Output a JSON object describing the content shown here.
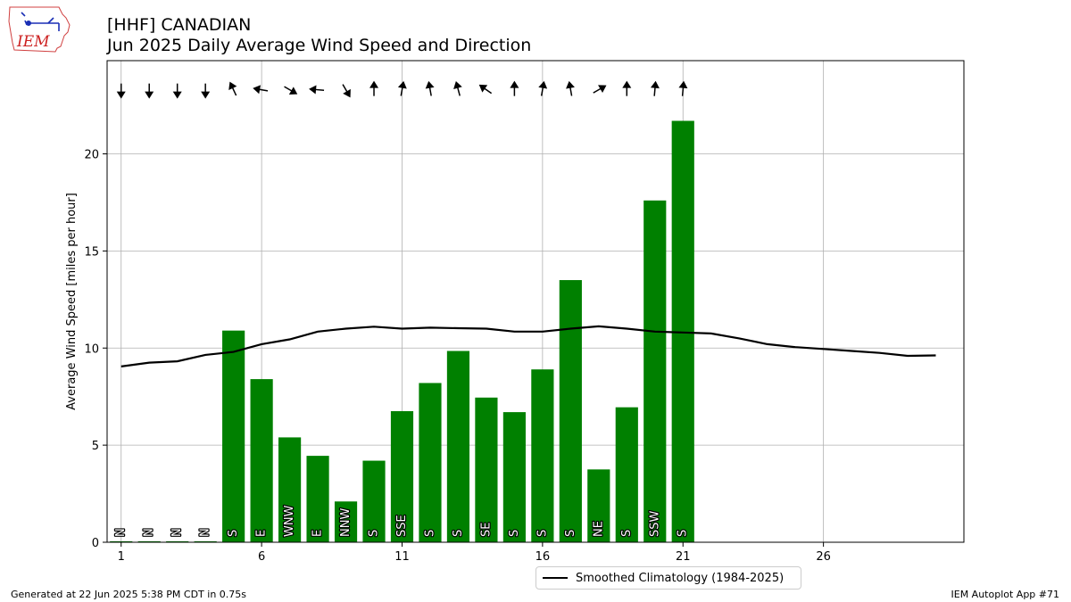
{
  "header": {
    "title_line1": "[HHF] CANADIAN",
    "title_line2": "Jun 2025 Daily Average Wind Speed and Direction",
    "logo_text": "IEM"
  },
  "footer": {
    "generated": "Generated at 22 Jun 2025 5:38 PM CDT in 0.75s",
    "app": "IEM Autoplot App #71"
  },
  "colors": {
    "bar": "#008000",
    "climatology": "#000000",
    "grid": "#b0b0b0"
  },
  "chart_data": {
    "type": "bar",
    "ylabel": "Average Wind Speed [miles per hour]",
    "xlim": [
      0.5,
      31
    ],
    "ylim": [
      0,
      24.8
    ],
    "xticks": [
      1,
      6,
      11,
      16,
      21,
      26
    ],
    "yticks": [
      0,
      5,
      10,
      15,
      20
    ],
    "grid": true,
    "legend_placement": "bottom-center",
    "days": [
      1,
      2,
      3,
      4,
      5,
      6,
      7,
      8,
      9,
      10,
      11,
      12,
      13,
      14,
      15,
      16,
      17,
      18,
      19,
      20,
      21
    ],
    "values": [
      0.05,
      0.05,
      0.05,
      0.05,
      10.9,
      8.4,
      5.4,
      4.45,
      2.1,
      4.2,
      6.75,
      8.2,
      9.85,
      7.45,
      6.7,
      8.9,
      13.5,
      3.75,
      6.95,
      17.6,
      21.7
    ],
    "direction_labels": [
      "N",
      "N",
      "N",
      "N",
      "S",
      "E",
      "WNW",
      "E",
      "NNW",
      "S",
      "SSE",
      "S",
      "S",
      "SE",
      "S",
      "S",
      "S",
      "NE",
      "S",
      "SSW",
      "S"
    ],
    "direction_degrees": [
      0,
      0,
      0,
      0,
      180,
      90,
      292.5,
      90,
      337.5,
      180,
      157.5,
      180,
      180,
      135,
      180,
      180,
      180,
      45,
      180,
      202.5,
      180
    ],
    "arrow_angles": [
      270,
      270,
      270,
      270,
      115,
      170,
      330,
      175,
      300,
      90,
      80,
      100,
      105,
      145,
      90,
      80,
      100,
      30,
      90,
      85,
      85
    ],
    "series": [
      {
        "name": "Smoothed Climatology (1984-2025)",
        "x": [
          1,
          2,
          3,
          4,
          5,
          6,
          7,
          8,
          9,
          10,
          11,
          12,
          13,
          14,
          15,
          16,
          17,
          18,
          19,
          20,
          21,
          22,
          23,
          24,
          25,
          26,
          27,
          28,
          29,
          30
        ],
        "values": [
          9.05,
          9.25,
          9.32,
          9.65,
          9.8,
          10.2,
          10.45,
          10.85,
          11.0,
          11.1,
          11.0,
          11.05,
          11.02,
          11.0,
          10.85,
          10.85,
          11.0,
          11.12,
          11.0,
          10.85,
          10.8,
          10.75,
          10.5,
          10.2,
          10.05,
          9.95,
          9.85,
          9.75,
          9.6,
          9.62
        ]
      }
    ]
  }
}
